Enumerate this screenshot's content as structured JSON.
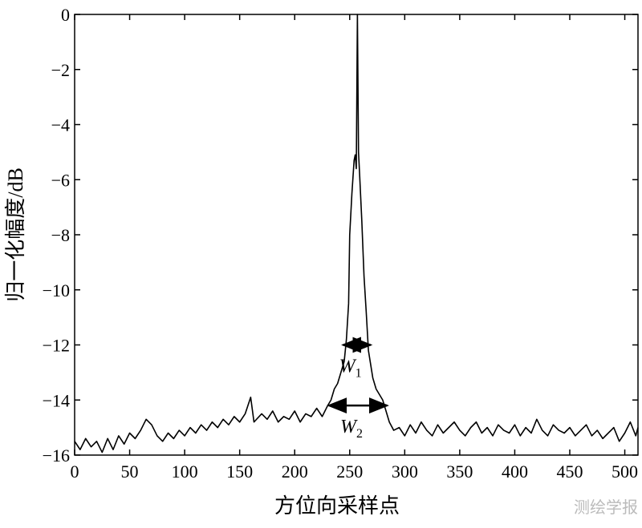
{
  "chart_data": {
    "type": "line",
    "xlabel": "方位向采样点",
    "ylabel": "归一化幅度/dB",
    "xlim": [
      0,
      512
    ],
    "ylim": [
      -16,
      0
    ],
    "xticks": [
      0,
      50,
      100,
      150,
      200,
      250,
      300,
      350,
      400,
      450,
      500
    ],
    "yticks": [
      0,
      {
        "value": -2,
        "label": "−2"
      },
      {
        "value": -4,
        "label": "−4"
      },
      {
        "value": -6,
        "label": "−6"
      },
      {
        "value": -8,
        "label": "−8"
      },
      {
        "value": -10,
        "label": "−10"
      },
      {
        "value": -12,
        "label": "−12"
      },
      {
        "value": -14,
        "label": "−14"
      },
      {
        "value": -16,
        "label": "−16"
      }
    ],
    "grid": false,
    "series": [
      {
        "color": "#000000",
        "x": [
          0,
          5,
          10,
          15,
          20,
          25,
          30,
          35,
          40,
          45,
          50,
          55,
          60,
          65,
          70,
          75,
          80,
          85,
          90,
          95,
          100,
          105,
          110,
          115,
          120,
          125,
          130,
          135,
          140,
          145,
          150,
          155,
          160,
          163,
          170,
          175,
          180,
          185,
          190,
          195,
          200,
          205,
          210,
          215,
          220,
          225,
          230,
          233,
          236,
          239,
          242,
          245,
          247,
          249,
          250,
          252,
          254,
          255,
          256,
          257,
          258,
          259,
          261,
          263,
          265,
          267,
          269,
          271,
          274,
          277,
          280,
          283,
          286,
          290,
          295,
          300,
          305,
          310,
          315,
          320,
          325,
          330,
          335,
          340,
          345,
          350,
          355,
          360,
          365,
          370,
          375,
          380,
          385,
          390,
          395,
          400,
          405,
          410,
          415,
          420,
          425,
          430,
          435,
          440,
          445,
          450,
          455,
          460,
          465,
          470,
          475,
          480,
          485,
          490,
          495,
          500,
          505,
          510,
          512
        ],
        "values": [
          -15.5,
          -15.8,
          -15.4,
          -15.7,
          -15.5,
          -15.9,
          -15.4,
          -15.8,
          -15.3,
          -15.6,
          -15.2,
          -15.4,
          -15.1,
          -14.7,
          -14.9,
          -15.3,
          -15.5,
          -15.2,
          -15.4,
          -15.1,
          -15.3,
          -15.0,
          -15.2,
          -14.9,
          -15.1,
          -14.8,
          -15.0,
          -14.7,
          -14.9,
          -14.6,
          -14.8,
          -14.5,
          -13.9,
          -14.8,
          -14.5,
          -14.7,
          -14.4,
          -14.8,
          -14.6,
          -14.7,
          -14.4,
          -14.8,
          -14.5,
          -14.6,
          -14.3,
          -14.6,
          -14.2,
          -14.0,
          -13.6,
          -13.4,
          -13.0,
          -12.6,
          -11.8,
          -10.5,
          -8.0,
          -6.5,
          -5.3,
          -5.1,
          -5.6,
          0,
          -5.0,
          -5.8,
          -7.5,
          -9.5,
          -10.8,
          -12.2,
          -12.7,
          -13.2,
          -13.6,
          -13.8,
          -14.0,
          -14.4,
          -14.8,
          -15.1,
          -15.0,
          -15.3,
          -14.9,
          -15.2,
          -14.8,
          -15.1,
          -15.3,
          -14.9,
          -15.2,
          -15.0,
          -14.8,
          -15.1,
          -15.3,
          -15.0,
          -14.8,
          -15.2,
          -15.0,
          -15.3,
          -14.9,
          -15.1,
          -15.2,
          -14.9,
          -15.3,
          -15.0,
          -15.2,
          -14.7,
          -15.1,
          -15.3,
          -14.9,
          -15.1,
          -15.2,
          -15.0,
          -15.3,
          -15.1,
          -14.9,
          -15.3,
          -15.1,
          -15.4,
          -15.2,
          -15.0,
          -15.5,
          -15.2,
          -14.8,
          -15.3,
          -15.0
        ]
      }
    ],
    "annotations": [
      {
        "text": "W",
        "sub": "1",
        "x1": 244,
        "x2": 269,
        "y": -12
      },
      {
        "text": "W",
        "sub": "2",
        "x1": 231,
        "x2": 284,
        "y": -14.2
      }
    ]
  },
  "watermark": "测绘学报"
}
